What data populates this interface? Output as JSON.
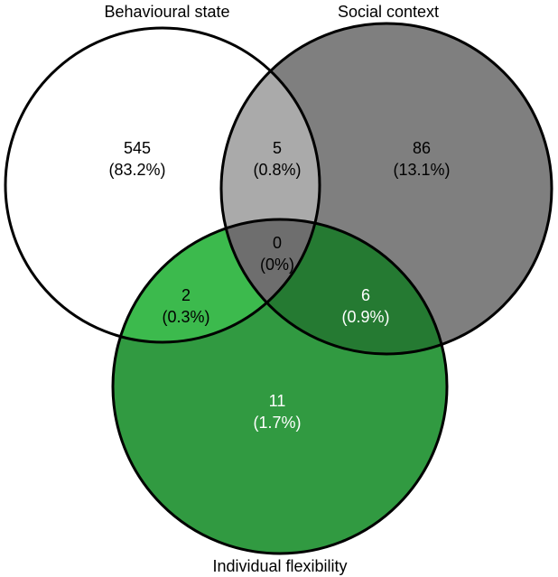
{
  "sets": {
    "behavioural": {
      "label": "Behavioural state",
      "fill": "#ffffff"
    },
    "social": {
      "label": "Social context",
      "fill": "#7f7f7f"
    },
    "individual": {
      "label": "Individual flexibility",
      "fill": "#319a41"
    }
  },
  "regions": {
    "b_only": {
      "count": "545",
      "percent": "(83.2%)",
      "fill": "#ffffff",
      "text_color": "#000000"
    },
    "bs": {
      "count": "5",
      "percent": "(0.8%)",
      "fill": "#aaaaaa",
      "text_color": "#000000"
    },
    "s_only": {
      "count": "86",
      "percent": "(13.1%)",
      "fill": "#7f7f7f",
      "text_color": "#000000"
    },
    "bsi": {
      "count": "0",
      "percent": "(0%)",
      "fill": "#6e6e6e",
      "text_color": "#000000"
    },
    "bi": {
      "count": "2",
      "percent": "(0.3%)",
      "fill": "#3cba4d",
      "text_color": "#000000"
    },
    "si": {
      "count": "6",
      "percent": "(0.9%)",
      "fill": "#257a32",
      "text_color": "#ffffff"
    },
    "i_only": {
      "count": "11",
      "percent": "(1.7%)",
      "fill": "#319a41",
      "text_color": "#ffffff"
    }
  }
}
